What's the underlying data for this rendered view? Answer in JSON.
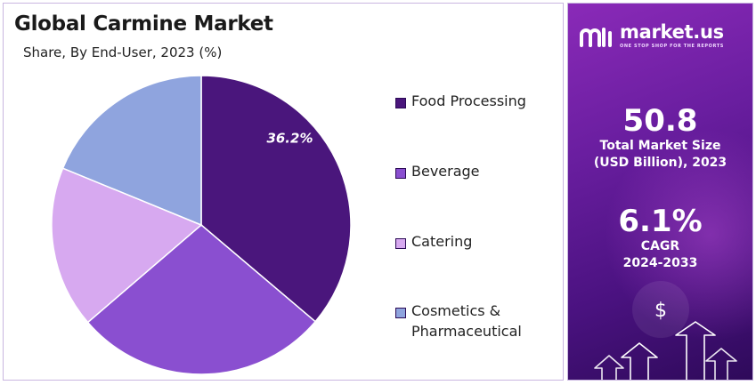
{
  "chart_data": {
    "type": "pie",
    "title": "Global Carmine Market",
    "subtitle": "Share, By End-User, 2023 (%)",
    "slices": [
      {
        "label": "Food Processing",
        "value": 36.2,
        "color": "#4a167c",
        "data_label": "36.2%"
      },
      {
        "label": "Beverage",
        "value": 27.5,
        "color": "#8a4fd0",
        "data_label": ""
      },
      {
        "label": "Catering",
        "value": 17.5,
        "color": "#d7a9f0",
        "data_label": ""
      },
      {
        "label": "Cosmetics & Pharmaceutical",
        "value": 18.8,
        "color": "#8fa4de",
        "data_label": ""
      }
    ],
    "legend_position": "right",
    "legend": [
      "Food Processing",
      "Beverage",
      "Catering",
      "Cosmetics & Pharmaceutical"
    ]
  },
  "sidebar": {
    "brand_name": "market.us",
    "brand_tagline": "ONE STOP SHOP FOR THE REPORTS",
    "market_size_value": "50.8",
    "market_size_label_line1": "Total Market Size",
    "market_size_label_line2": "(USD Billion), 2023",
    "cagr_value": "6.1%",
    "cagr_label_line1": "CAGR",
    "cagr_label_line2": "2024-2033",
    "currency_symbol": "$"
  },
  "colors": {
    "panel_gradient_start": "#8a2ab8",
    "panel_gradient_end": "#2e0a5a"
  }
}
